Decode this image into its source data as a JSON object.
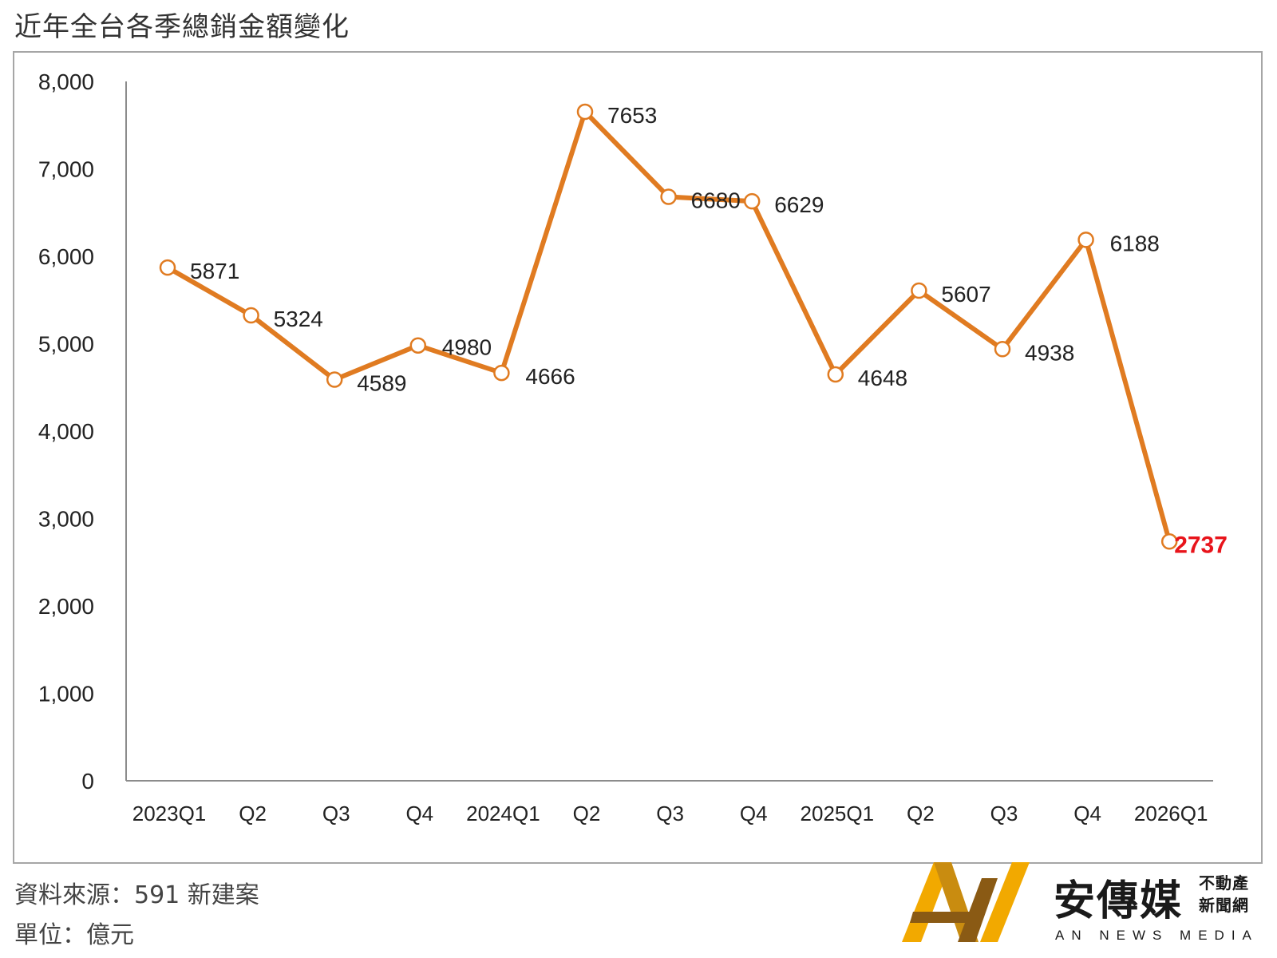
{
  "title": "近年全台各季總銷金額變化",
  "footer": {
    "source": "資料來源：591 新建案",
    "unit": "單位：億元"
  },
  "logo": {
    "name_cn": "安傳媒",
    "tag_line1": "不動產",
    "tag_line2": "新聞網",
    "name_en": "AN NEWS MEDIA"
  },
  "colors": {
    "line": "#e07b21",
    "marker_fill": "#ffffff",
    "highlight_label": "#e8141b",
    "axis": "#8c8c8c",
    "logo_gold": "#f2a900",
    "logo_brown": "#8a5a14"
  },
  "chart_data": {
    "type": "line",
    "title": "近年全台各季總銷金額變化",
    "xlabel": "",
    "ylabel": "",
    "categories": [
      "2023Q1",
      "Q2",
      "Q3",
      "Q4",
      "2024Q1",
      "Q2",
      "Q3",
      "Q4",
      "2025Q1",
      "Q2",
      "Q3",
      "Q4",
      "2026Q1"
    ],
    "series": [
      {
        "values": [
          5871,
          5324,
          4589,
          4980,
          4666,
          7653,
          6680,
          6629,
          4648,
          5607,
          4938,
          6188,
          2737
        ]
      }
    ],
    "data_labels": [
      "5871",
      "5324",
      "4589",
      "4980",
      "4666",
      "7653",
      "6680",
      "6629",
      "4648",
      "5607",
      "4938",
      "6188",
      "2737"
    ],
    "highlight_index": 12,
    "ylim": [
      0,
      8000
    ],
    "yticks": [
      0,
      1000,
      2000,
      3000,
      4000,
      5000,
      6000,
      7000,
      8000
    ],
    "ytick_labels": [
      "0",
      "1,000",
      "2,000",
      "3,000",
      "4,000",
      "5,000",
      "6,000",
      "7,000",
      "8,000"
    ],
    "grid": false,
    "legend": "none"
  }
}
